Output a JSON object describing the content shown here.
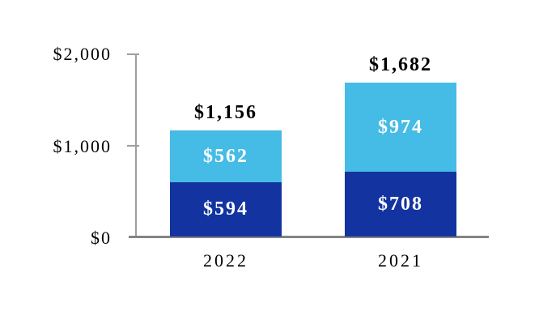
{
  "chart_data": {
    "type": "bar",
    "stacked": true,
    "title": "",
    "xlabel": "",
    "ylabel": "",
    "ylim": [
      0,
      2000
    ],
    "grid": false,
    "legend": "none",
    "y_ticks": [
      {
        "value": 2000,
        "label": "$2,000"
      },
      {
        "value": 1000,
        "label": "$1,000"
      },
      {
        "value": 0,
        "label": "$0"
      }
    ],
    "categories": [
      "2022",
      "2021"
    ],
    "series": [
      {
        "name": "bottom-segment",
        "color": "#1233A0",
        "values": [
          594,
          708
        ]
      },
      {
        "name": "top-segment",
        "color": "#45BCE5",
        "values": [
          562,
          974
        ]
      }
    ],
    "bars": [
      {
        "category": "2022",
        "total": 1156,
        "total_label": "$1,156",
        "segments": [
          {
            "name": "bottom",
            "value": 594,
            "label": "$594",
            "color": "#1233A0"
          },
          {
            "name": "top",
            "value": 562,
            "label": "$562",
            "color": "#45BCE5"
          }
        ]
      },
      {
        "category": "2021",
        "total": 1682,
        "total_label": "$1,682",
        "segments": [
          {
            "name": "bottom",
            "value": 708,
            "label": "$708",
            "color": "#1233A0"
          },
          {
            "name": "top",
            "value": 974,
            "label": "$974",
            "color": "#45BCE5"
          }
        ]
      }
    ],
    "colors": {
      "segment_bottom": "#1233A0",
      "segment_top": "#45BCE5",
      "axis_line": "#9E9E9E",
      "baseline": "#848484",
      "total_label_text": "#000000",
      "in_bar_label_text": "#FFFFFF"
    }
  }
}
